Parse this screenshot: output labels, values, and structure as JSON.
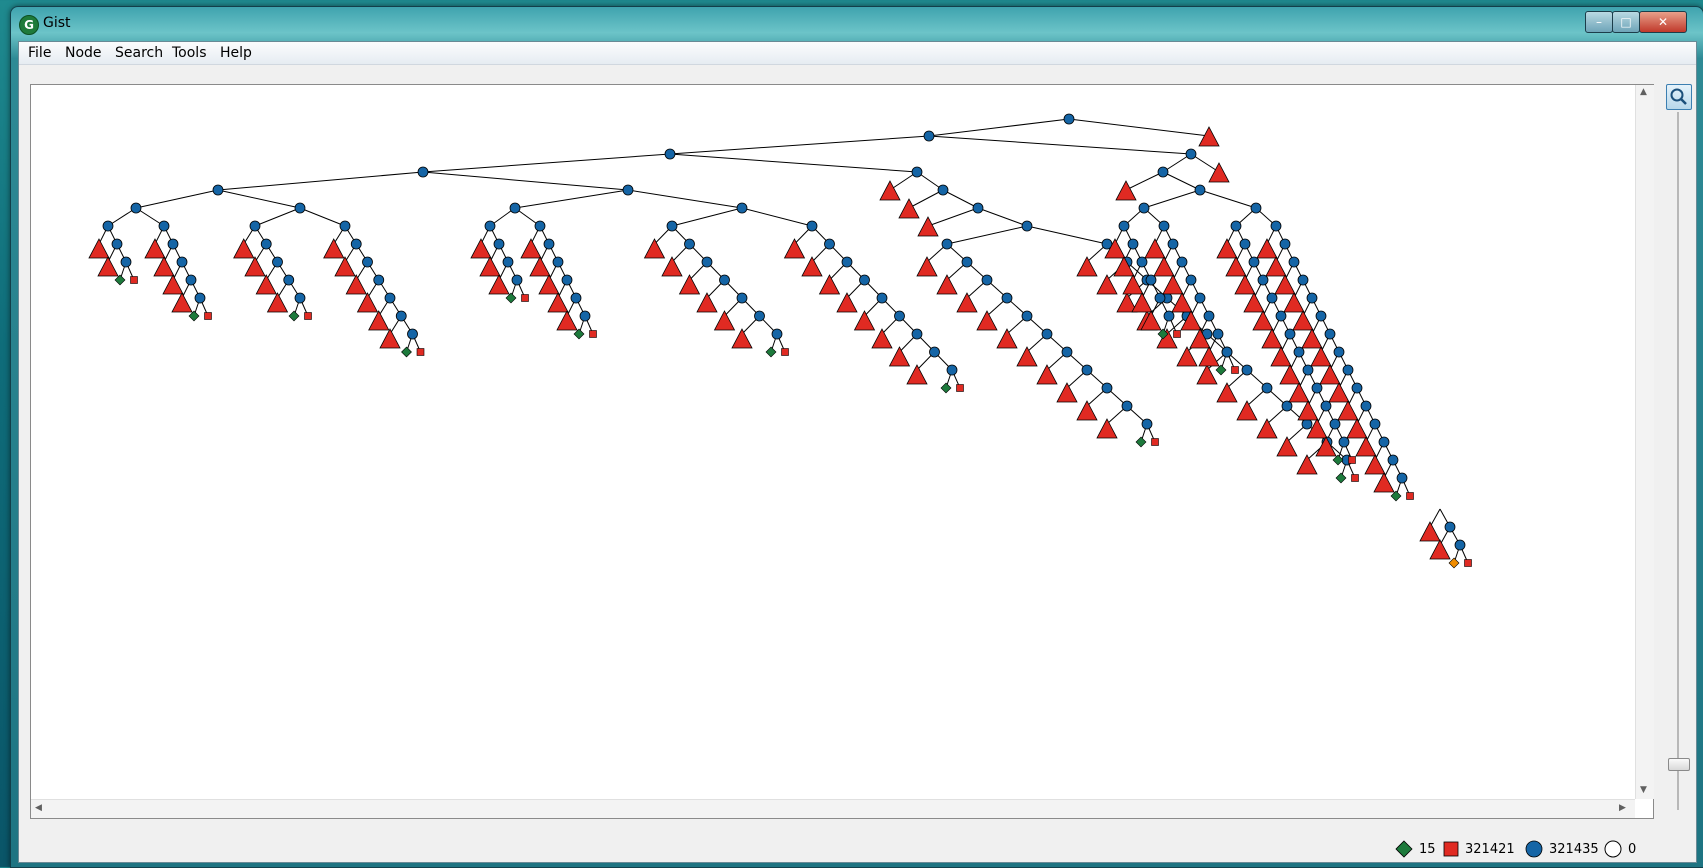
{
  "window": {
    "title": "Gist",
    "app_icon_letter": "G"
  },
  "menu": {
    "items": [
      "File",
      "Node",
      "Search",
      "Tools",
      "Help"
    ]
  },
  "status": {
    "solved": "15",
    "failed": "321421",
    "choice": "321435",
    "open": "0"
  },
  "colors": {
    "choice_node": "#1565a6",
    "failed_node": "#e02a22",
    "solution_node": "#1d7a3c",
    "best_solution_node": "#f08c00",
    "edge": "#000000"
  },
  "icons": {
    "zoom": "magnifier-icon",
    "minimize": "minimize-icon",
    "maximize": "maximize-icon",
    "close": "close-icon"
  }
}
